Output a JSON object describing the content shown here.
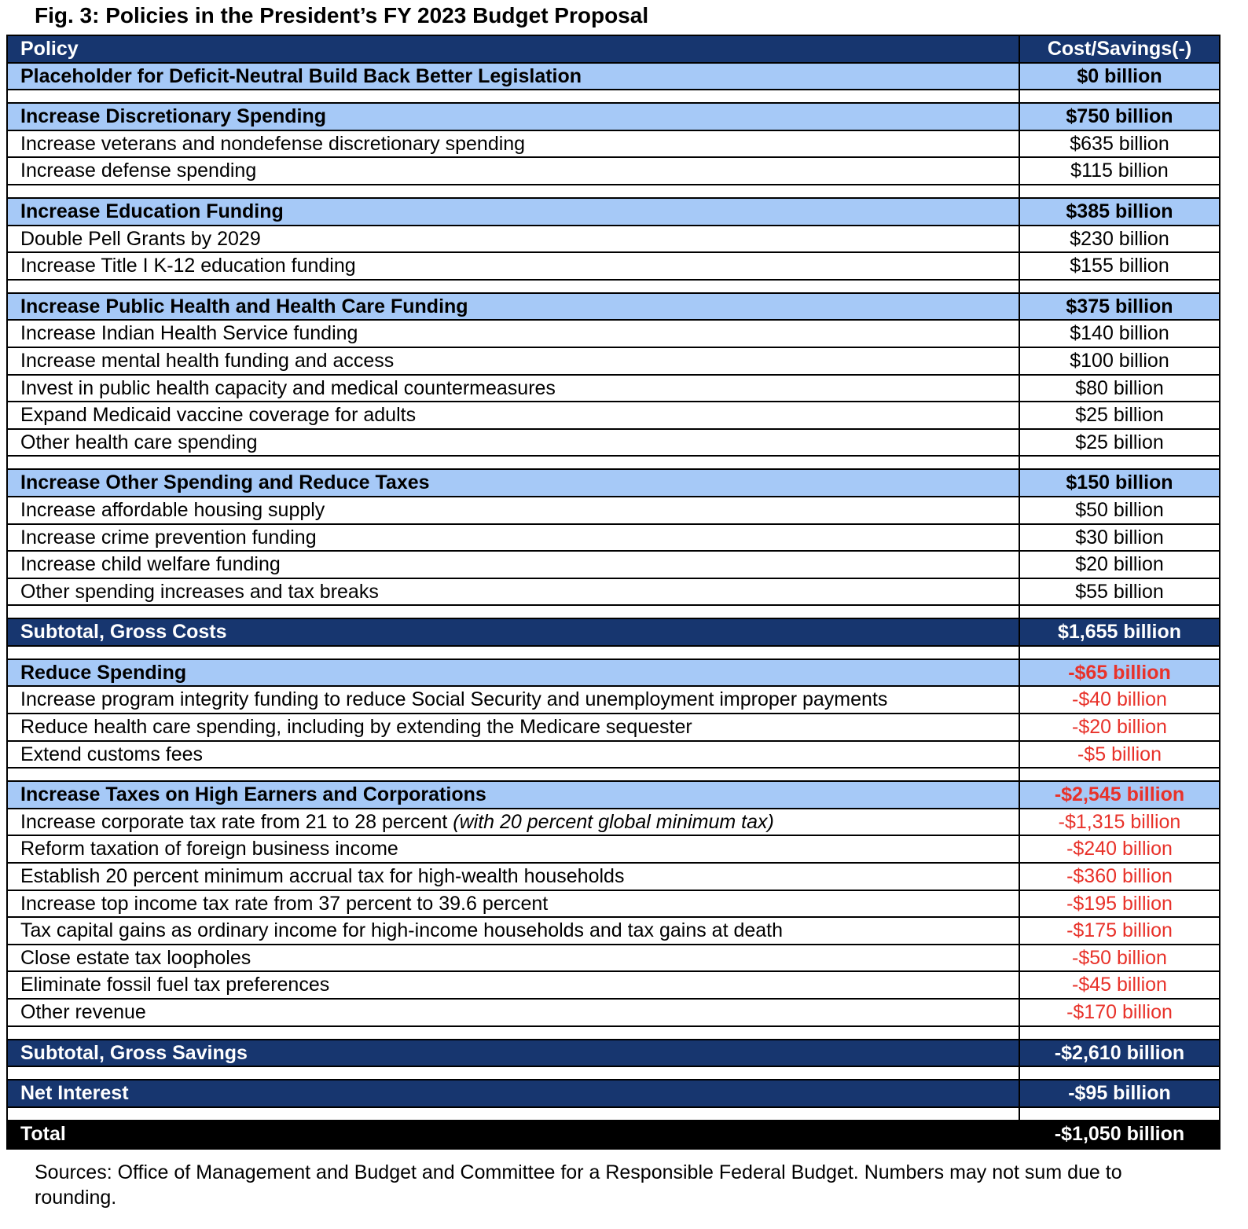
{
  "title": "Fig. 3: Policies in the President’s FY 2023 Budget Proposal",
  "colors": {
    "navy": "#17366f",
    "section_blue": "#a6c9f7",
    "negative_red": "#e8322a"
  },
  "rows": [
    {
      "type": "head",
      "policy": "Policy",
      "value": "Cost/Savings(-)"
    },
    {
      "type": "section",
      "policy": "Placeholder for Deficit-Neutral Build Back Better Legislation",
      "value": "$0 billion"
    },
    {
      "type": "spacer"
    },
    {
      "type": "section",
      "policy": "Increase Discretionary Spending",
      "value": "$750 billion"
    },
    {
      "type": "item",
      "policy": "Increase veterans and nondefense discretionary spending",
      "value": "$635 billion"
    },
    {
      "type": "item",
      "policy": "Increase defense spending",
      "value": "$115 billion"
    },
    {
      "type": "spacer"
    },
    {
      "type": "section",
      "policy": "Increase Education Funding",
      "value": "$385 billion"
    },
    {
      "type": "item",
      "policy": "Double Pell Grants by 2029",
      "value": "$230 billion"
    },
    {
      "type": "item",
      "policy": "Increase Title I K-12 education funding",
      "value": "$155 billion"
    },
    {
      "type": "spacer"
    },
    {
      "type": "section",
      "policy": "Increase Public Health and Health Care Funding",
      "value": "$375 billion"
    },
    {
      "type": "item",
      "policy": "Increase Indian Health Service funding",
      "value": "$140 billion"
    },
    {
      "type": "item",
      "policy": "Increase mental health funding and access",
      "value": "$100 billion"
    },
    {
      "type": "item",
      "policy": "Invest in public health capacity and medical countermeasures",
      "value": "$80 billion"
    },
    {
      "type": "item",
      "policy": "Expand Medicaid vaccine coverage for adults",
      "value": "$25 billion"
    },
    {
      "type": "item",
      "policy": "Other health care spending",
      "value": "$25 billion"
    },
    {
      "type": "spacer"
    },
    {
      "type": "section",
      "policy": "Increase Other Spending and Reduce Taxes",
      "value": "$150 billion"
    },
    {
      "type": "item",
      "policy": "Increase affordable housing supply",
      "value": "$50 billion"
    },
    {
      "type": "item",
      "policy": "Increase crime prevention funding",
      "value": "$30 billion"
    },
    {
      "type": "item",
      "policy": "Increase child welfare funding",
      "value": "$20 billion"
    },
    {
      "type": "item",
      "policy": "Other spending increases and tax breaks",
      "value": "$55 billion"
    },
    {
      "type": "spacer"
    },
    {
      "type": "dark",
      "policy": "Subtotal, Gross Costs",
      "value": "$1,655 billion"
    },
    {
      "type": "spacer"
    },
    {
      "type": "section",
      "policy": "Reduce Spending",
      "value": "-$65 billion",
      "negative": true
    },
    {
      "type": "item",
      "policy": "Increase program integrity funding to reduce Social Security and unemployment improper payments",
      "value": "-$40 billion",
      "negative": true
    },
    {
      "type": "item",
      "policy": "Reduce health care spending, including by extending the Medicare sequester",
      "value": "-$20 billion",
      "negative": true
    },
    {
      "type": "item",
      "policy": "Extend customs fees",
      "value": "-$5 billion",
      "negative": true
    },
    {
      "type": "spacer"
    },
    {
      "type": "section",
      "policy": "Increase Taxes on High Earners and Corporations",
      "value": "-$2,545 billion",
      "negative": true
    },
    {
      "type": "item",
      "policy": "Increase corporate tax rate from 21 to 28 percent ",
      "note": "(with 20 percent global minimum tax)",
      "value": "-$1,315 billion",
      "negative": true
    },
    {
      "type": "item",
      "policy": "Reform taxation of foreign business income",
      "value": "-$240 billion",
      "negative": true
    },
    {
      "type": "item",
      "policy": "Establish 20 percent minimum accrual tax for high-wealth households",
      "value": "-$360 billion",
      "negative": true
    },
    {
      "type": "item",
      "policy": "Increase top income tax rate from 37 percent to 39.6 percent",
      "value": "-$195 billion",
      "negative": true
    },
    {
      "type": "item",
      "policy": "Tax capital gains as ordinary income for high-income households and tax gains at death",
      "value": "-$175 billion",
      "negative": true
    },
    {
      "type": "item",
      "policy": "Close estate tax loopholes",
      "value": "-$50 billion",
      "negative": true
    },
    {
      "type": "item",
      "policy": "Eliminate fossil fuel tax preferences",
      "value": "-$45 billion",
      "negative": true
    },
    {
      "type": "item",
      "policy": "Other revenue",
      "value": "-$170 billion",
      "negative": true
    },
    {
      "type": "spacer"
    },
    {
      "type": "dark",
      "policy": "Subtotal, Gross Savings",
      "value": "-$2,610 billion",
      "negative": true
    },
    {
      "type": "spacer"
    },
    {
      "type": "dark",
      "policy": "Net Interest",
      "value": "-$95 billion",
      "negative": true
    },
    {
      "type": "spacer"
    },
    {
      "type": "total",
      "policy": "Total",
      "value": "-$1,050 billion",
      "negative": true
    }
  ],
  "source": "Sources: Office of Management and Budget and Committee for a Responsible Federal Budget. Numbers may not sum due to rounding."
}
